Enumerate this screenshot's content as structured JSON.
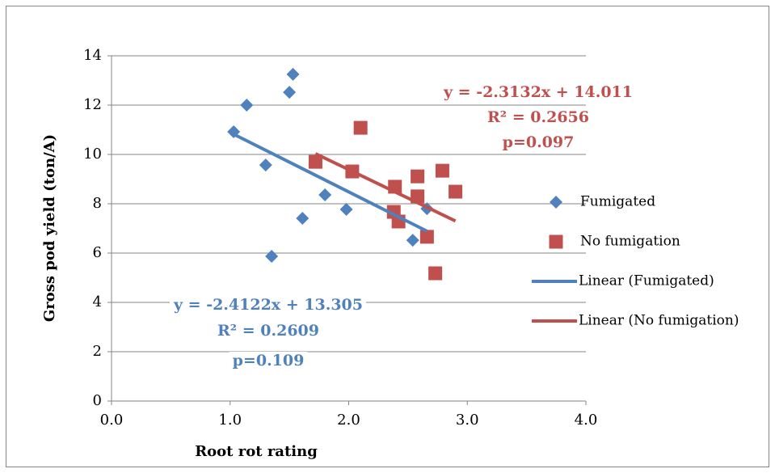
{
  "chart_data": {
    "type": "scatter",
    "x_label": "Root rot rating",
    "y_label": "Gross pod yield (ton/A)",
    "xlim": [
      0,
      4
    ],
    "ylim": [
      0,
      14
    ],
    "xticks": [
      {
        "value": 0,
        "label": "0.0"
      },
      {
        "value": 1,
        "label": "1.0"
      },
      {
        "value": 2,
        "label": "2.0"
      },
      {
        "value": 3,
        "label": "3.0"
      },
      {
        "value": 4,
        "label": "4.0"
      }
    ],
    "yticks": [
      0,
      2,
      4,
      6,
      8,
      10,
      12,
      14
    ],
    "grid": true,
    "legend": "right",
    "series": [
      {
        "name": "Fumigated",
        "marker": "diamond",
        "color": "#4f81bd",
        "x": [
          1.03,
          1.14,
          1.5,
          1.53,
          1.3,
          1.35,
          1.61,
          1.8,
          1.98,
          2.54,
          2.66
        ],
        "values": [
          10.92,
          12.0,
          12.52,
          13.25,
          9.57,
          5.87,
          7.41,
          8.36,
          7.77,
          6.52,
          7.8
        ],
        "trendline": {
          "name": "Linear (Fumigated)",
          "color": "#4f81bd",
          "slope": -2.4122,
          "intercept": 13.305
        }
      },
      {
        "name": "No fumigation",
        "marker": "square",
        "color": "#c0504d",
        "x": [
          1.72,
          2.03,
          2.1,
          2.39,
          2.38,
          2.42,
          2.58,
          2.58,
          2.66,
          2.79,
          2.9,
          2.73
        ],
        "values": [
          9.7,
          9.31,
          11.08,
          8.69,
          7.67,
          7.28,
          8.3,
          9.11,
          6.66,
          9.34,
          8.49,
          5.18
        ],
        "trendline": {
          "name": "Linear (No fumigation)",
          "color": "#c0504d",
          "slope": -2.3132,
          "intercept": 14.011
        }
      }
    ],
    "annotations": [
      {
        "color": "#4f81bd",
        "lines": [
          "y = -2.4122x + 13.305",
          "R² = 0.2609",
          "p=0.109"
        ]
      },
      {
        "color": "#c0504d",
        "lines": [
          "y = -2.3132x + 14.011",
          "R² = 0.2656",
          "p=0.097"
        ]
      }
    ]
  }
}
